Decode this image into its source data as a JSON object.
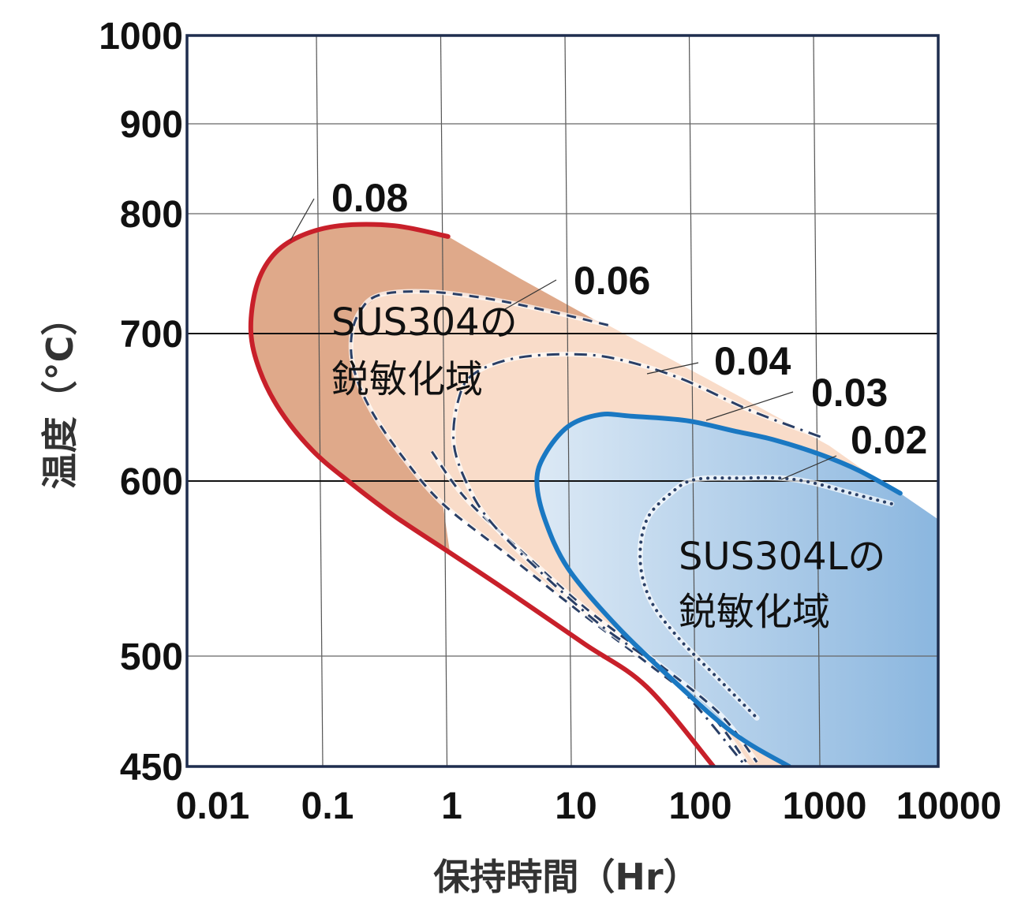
{
  "chart_data": {
    "type": "line",
    "title": "",
    "xlabel": "保持時間（Hr）",
    "ylabel": "温度（°C）",
    "x_scale": "log",
    "y_scale": "reciprocal-absolute-temperature",
    "xlim": [
      0.01,
      10000
    ],
    "ylim": [
      450,
      1000
    ],
    "grid": true,
    "xticks": [
      {
        "value": 0.01,
        "label": "0.01"
      },
      {
        "value": 0.1,
        "label": "0.1"
      },
      {
        "value": 1,
        "label": "1"
      },
      {
        "value": 10,
        "label": "10"
      },
      {
        "value": 100,
        "label": "100"
      },
      {
        "value": 1000,
        "label": "1000"
      },
      {
        "value": 10000,
        "label": "10000"
      }
    ],
    "yticks": [
      {
        "value": 1000,
        "label": "1000"
      },
      {
        "value": 900,
        "label": "900"
      },
      {
        "value": 800,
        "label": "800"
      },
      {
        "value": 700,
        "label": "700"
      },
      {
        "value": 600,
        "label": "600"
      },
      {
        "value": 500,
        "label": "500"
      },
      {
        "value": 450,
        "label": "450"
      }
    ],
    "series": [
      {
        "name": "0.08",
        "style": "solid",
        "color": "#c8202a",
        "points": [
          [
            1.08,
            781
          ],
          [
            0.4,
            790
          ],
          [
            0.145,
            790
          ],
          [
            0.069,
            781
          ],
          [
            0.042,
            765
          ],
          [
            0.031,
            739
          ],
          [
            0.028,
            702
          ],
          [
            0.033,
            675
          ],
          [
            0.048,
            648
          ],
          [
            0.087,
            621
          ],
          [
            0.17,
            600
          ],
          [
            0.4,
            580
          ],
          [
            1.12,
            559
          ],
          [
            3.6,
            535
          ],
          [
            13.5,
            507
          ],
          [
            43,
            486
          ],
          [
            148,
            450
          ]
        ]
      },
      {
        "name": "0.06",
        "style": "dashed",
        "color": "#2a3f66",
        "points": [
          [
            21,
            707
          ],
          [
            7.5,
            718
          ],
          [
            2.3,
            729
          ],
          [
            0.72,
            735
          ],
          [
            0.3,
            732
          ],
          [
            0.21,
            718
          ],
          [
            0.18,
            697
          ],
          [
            0.19,
            675
          ],
          [
            0.26,
            648
          ],
          [
            0.47,
            616
          ],
          [
            0.98,
            587
          ],
          [
            3.1,
            559
          ],
          [
            11.5,
            527
          ],
          [
            43,
            497
          ],
          [
            138,
            474
          ],
          [
            270,
            452
          ]
        ]
      },
      {
        "name": "",
        "style": "dashed",
        "color": "#2a3f66",
        "points": [
          [
            0.8,
            620
          ],
          [
            1.5,
            590
          ],
          [
            4.2,
            560
          ],
          [
            14,
            527
          ],
          [
            52,
            497
          ],
          [
            165,
            474
          ],
          [
            330,
            452
          ]
        ]
      },
      {
        "name": "0.04",
        "style": "dash-dot",
        "color": "#2a3f66",
        "points": [
          [
            1070,
            630
          ],
          [
            290,
            648
          ],
          [
            78,
            670
          ],
          [
            24,
            683
          ],
          [
            10,
            686
          ],
          [
            3.6,
            683
          ],
          [
            1.7,
            672
          ],
          [
            1.3,
            654
          ],
          [
            1.2,
            626
          ],
          [
            1.5,
            600
          ],
          [
            2.3,
            578
          ],
          [
            5.6,
            550
          ],
          [
            18,
            518
          ],
          [
            67,
            490
          ],
          [
            270,
            450
          ]
        ]
      },
      {
        "name": "0.03",
        "style": "solid",
        "color": "#1a78c2",
        "points": [
          [
            4700,
            593
          ],
          [
            2200,
            607
          ],
          [
            1070,
            618
          ],
          [
            450,
            628
          ],
          [
            215,
            634
          ],
          [
            89,
            641
          ],
          [
            32,
            644
          ],
          [
            18,
            645
          ],
          [
            10,
            637
          ],
          [
            6.5,
            618
          ],
          [
            5.6,
            600
          ],
          [
            6.5,
            578
          ],
          [
            10,
            550
          ],
          [
            24,
            518
          ],
          [
            67,
            490
          ],
          [
            215,
            465
          ],
          [
            600,
            450
          ]
        ]
      },
      {
        "name": "0.02",
        "style": "dotted",
        "color": "#2a3f66",
        "points": [
          [
            4000,
            587
          ],
          [
            1900,
            593
          ],
          [
            930,
            599
          ],
          [
            510,
            602
          ],
          [
            250,
            602
          ],
          [
            105,
            601
          ],
          [
            67,
            593
          ],
          [
            43,
            578
          ],
          [
            38,
            555
          ],
          [
            46,
            532
          ],
          [
            78,
            510
          ],
          [
            160,
            490
          ],
          [
            330,
            472
          ]
        ]
      }
    ],
    "regions": [
      {
        "label_line1": "SUS304の",
        "label_line2": "鋭敏化域",
        "colors": [
          "#dfa98a",
          "#f9dcc9"
        ]
      },
      {
        "label_line1": "SUS304Lの",
        "label_line2": "鋭敏化域",
        "colors": [
          "#dce9f5",
          "#8ab6df"
        ]
      }
    ],
    "frame_color": "#1e2d4e"
  }
}
